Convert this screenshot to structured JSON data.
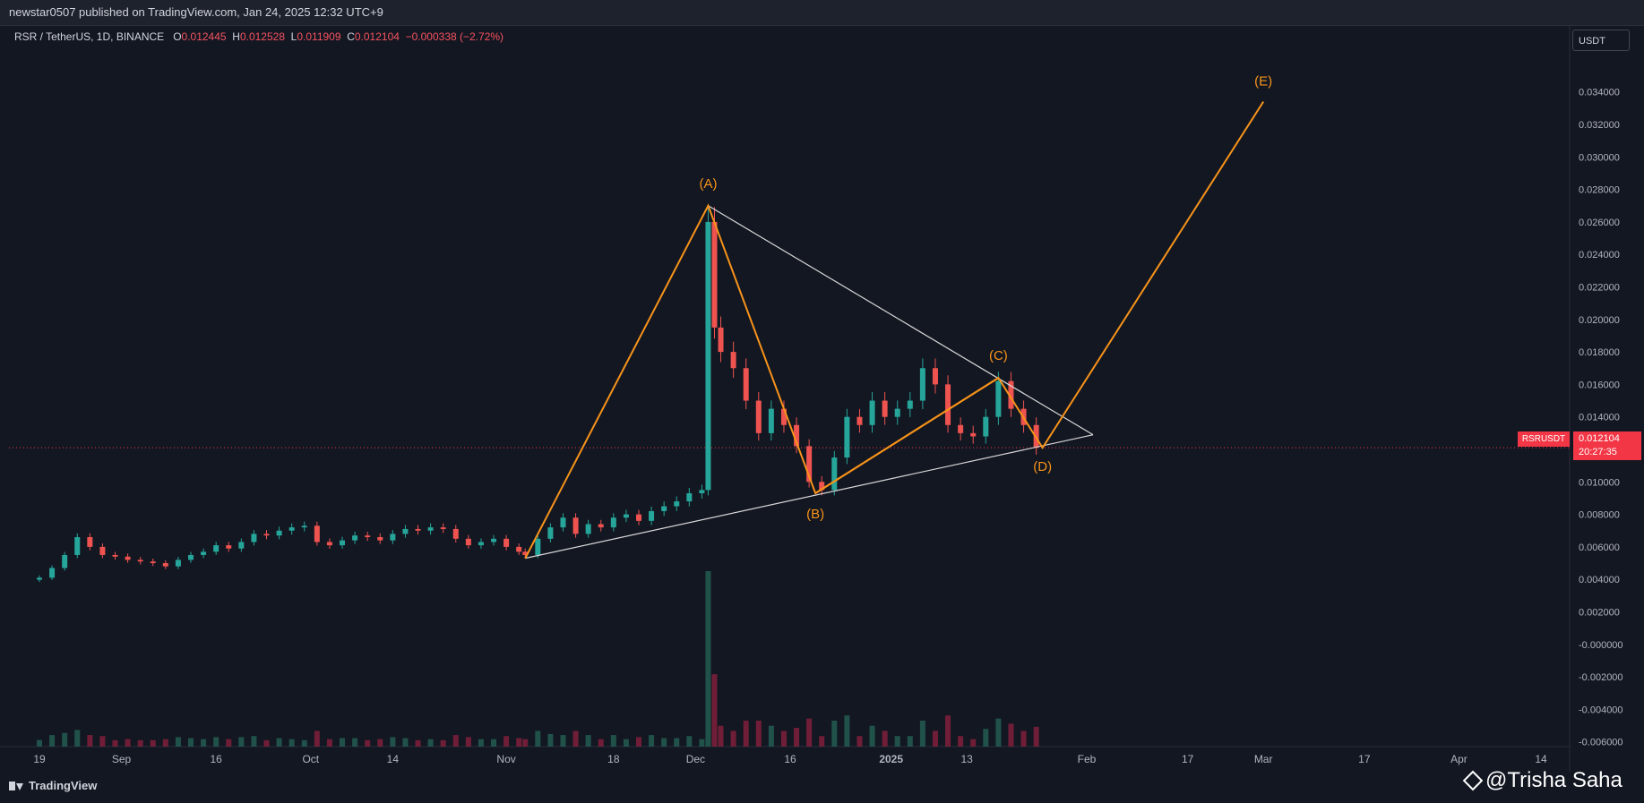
{
  "header": {
    "published": "newstar0507 published on TradingView.com, Jan 24, 2025 12:32 UTC+9"
  },
  "symbol": {
    "title": "RSR / TetherUS, 1D, BINANCE",
    "o_label": "O",
    "o": "0.012445",
    "h_label": "H",
    "h": "0.012528",
    "l_label": "L",
    "l": "0.011909",
    "c_label": "C",
    "c": "0.012104",
    "change": "−0.000338 (−2.72%)"
  },
  "price_axis": {
    "unit": "USDT",
    "symbol_tag": "RSRUSDT",
    "last_price": "0.012104",
    "countdown": "20:27:35"
  },
  "branding": {
    "logo_text": "TradingView",
    "watermark": "@Trisha Saha"
  },
  "colors": {
    "up": "#26a69a",
    "down": "#ef5350",
    "pattern": "#f7931a",
    "trendline": "#d8d8d8",
    "bg": "#131722"
  },
  "chart_data": {
    "type": "candlestick",
    "title": "RSR / TetherUS, 1D, BINANCE",
    "y_ticks": [
      "0.034000",
      "0.032000",
      "0.030000",
      "0.028000",
      "0.026000",
      "0.024000",
      "0.022000",
      "0.020000",
      "0.018000",
      "0.016000",
      "0.014000",
      "0.012000",
      "0.010000",
      "0.008000",
      "0.006000",
      "0.004000",
      "0.002000",
      "-0.000000",
      "-0.002000",
      "-0.004000",
      "-0.006000"
    ],
    "x_ticks": [
      {
        "label": "19",
        "date": "2024-08-19"
      },
      {
        "label": "Sep",
        "date": "2024-09-01"
      },
      {
        "label": "16",
        "date": "2024-09-16"
      },
      {
        "label": "Oct",
        "date": "2024-10-01"
      },
      {
        "label": "14",
        "date": "2024-10-14"
      },
      {
        "label": "Nov",
        "date": "2024-11-01"
      },
      {
        "label": "18",
        "date": "2024-11-18"
      },
      {
        "label": "Dec",
        "date": "2024-12-01"
      },
      {
        "label": "16",
        "date": "2024-12-16"
      },
      {
        "label": "2025",
        "date": "2025-01-01"
      },
      {
        "label": "13",
        "date": "2025-01-13"
      },
      {
        "label": "Feb",
        "date": "2025-02-01"
      },
      {
        "label": "17",
        "date": "2025-02-17"
      },
      {
        "label": "Mar",
        "date": "2025-03-01"
      },
      {
        "label": "17",
        "date": "2025-03-17"
      },
      {
        "label": "Apr",
        "date": "2025-04-01"
      },
      {
        "label": "14",
        "date": "2025-04-14"
      }
    ],
    "closes": [
      [
        "2024-08-19",
        0.0041
      ],
      [
        "2024-08-21",
        0.0047
      ],
      [
        "2024-08-23",
        0.0055
      ],
      [
        "2024-08-25",
        0.0066
      ],
      [
        "2024-08-27",
        0.006
      ],
      [
        "2024-08-29",
        0.0055
      ],
      [
        "2024-08-31",
        0.0054
      ],
      [
        "2024-09-02",
        0.0052
      ],
      [
        "2024-09-04",
        0.0051
      ],
      [
        "2024-09-06",
        0.005
      ],
      [
        "2024-09-08",
        0.0048
      ],
      [
        "2024-09-10",
        0.0052
      ],
      [
        "2024-09-12",
        0.0055
      ],
      [
        "2024-09-14",
        0.0057
      ],
      [
        "2024-09-16",
        0.0061
      ],
      [
        "2024-09-18",
        0.0059
      ],
      [
        "2024-09-20",
        0.0063
      ],
      [
        "2024-09-22",
        0.0068
      ],
      [
        "2024-09-24",
        0.0067
      ],
      [
        "2024-09-26",
        0.007
      ],
      [
        "2024-09-28",
        0.0072
      ],
      [
        "2024-09-30",
        0.0073
      ],
      [
        "2024-10-02",
        0.0063
      ],
      [
        "2024-10-04",
        0.0061
      ],
      [
        "2024-10-06",
        0.0064
      ],
      [
        "2024-10-08",
        0.0067
      ],
      [
        "2024-10-10",
        0.0066
      ],
      [
        "2024-10-12",
        0.0064
      ],
      [
        "2024-10-14",
        0.0068
      ],
      [
        "2024-10-16",
        0.0071
      ],
      [
        "2024-10-18",
        0.007
      ],
      [
        "2024-10-20",
        0.0072
      ],
      [
        "2024-10-22",
        0.0071
      ],
      [
        "2024-10-24",
        0.0065
      ],
      [
        "2024-10-26",
        0.0061
      ],
      [
        "2024-10-28",
        0.0063
      ],
      [
        "2024-10-30",
        0.0065
      ],
      [
        "2024-11-01",
        0.006
      ],
      [
        "2024-11-03",
        0.0057
      ],
      [
        "2024-11-04",
        0.0055
      ],
      [
        "2024-11-06",
        0.0065
      ],
      [
        "2024-11-08",
        0.0072
      ],
      [
        "2024-11-10",
        0.0078
      ],
      [
        "2024-11-12",
        0.0068
      ],
      [
        "2024-11-14",
        0.0074
      ],
      [
        "2024-11-16",
        0.0072
      ],
      [
        "2024-11-18",
        0.0078
      ],
      [
        "2024-11-20",
        0.008
      ],
      [
        "2024-11-22",
        0.0076
      ],
      [
        "2024-11-24",
        0.0082
      ],
      [
        "2024-11-26",
        0.0085
      ],
      [
        "2024-11-28",
        0.0088
      ],
      [
        "2024-11-30",
        0.0093
      ],
      [
        "2024-12-02",
        0.0095
      ],
      [
        "2024-12-03",
        0.026
      ],
      [
        "2024-12-04",
        0.0195
      ],
      [
        "2024-12-05",
        0.018
      ],
      [
        "2024-12-07",
        0.017
      ],
      [
        "2024-12-09",
        0.015
      ],
      [
        "2024-12-11",
        0.013
      ],
      [
        "2024-12-13",
        0.0145
      ],
      [
        "2024-12-15",
        0.0135
      ],
      [
        "2024-12-17",
        0.0122
      ],
      [
        "2024-12-19",
        0.01
      ],
      [
        "2024-12-21",
        0.0095
      ],
      [
        "2024-12-23",
        0.0115
      ],
      [
        "2024-12-25",
        0.014
      ],
      [
        "2024-12-27",
        0.0135
      ],
      [
        "2024-12-29",
        0.015
      ],
      [
        "2024-12-31",
        0.014
      ],
      [
        "2025-01-02",
        0.0145
      ],
      [
        "2025-01-04",
        0.015
      ],
      [
        "2025-01-06",
        0.017
      ],
      [
        "2025-01-08",
        0.016
      ],
      [
        "2025-01-10",
        0.0135
      ],
      [
        "2025-01-12",
        0.013
      ],
      [
        "2025-01-14",
        0.0128
      ],
      [
        "2025-01-16",
        0.014
      ],
      [
        "2025-01-18",
        0.0162
      ],
      [
        "2025-01-20",
        0.0145
      ],
      [
        "2025-01-22",
        0.0135
      ],
      [
        "2025-01-24",
        0.0121
      ]
    ],
    "pattern": [
      {
        "label": "(A)",
        "date": "2024-12-03",
        "price": 0.027
      },
      {
        "label": "(B)",
        "date": "2024-12-20",
        "price": 0.0093
      },
      {
        "label": "(C)",
        "date": "2025-01-18",
        "price": 0.0164
      },
      {
        "label": "(D)",
        "date": "2025-01-25",
        "price": 0.0121
      },
      {
        "label": "(E)",
        "date": "2025-03-01",
        "price": 0.0334
      }
    ],
    "pattern_start": {
      "date": "2024-11-04",
      "price": 0.0053
    },
    "triangle": {
      "upper": [
        {
          "date": "2024-12-03",
          "price": 0.027
        },
        {
          "date": "2025-02-02",
          "price": 0.0129
        }
      ],
      "lower": [
        {
          "date": "2024-11-04",
          "price": 0.0053
        },
        {
          "date": "2025-02-02",
          "price": 0.0129
        }
      ]
    },
    "last_price": 0.012104
  }
}
